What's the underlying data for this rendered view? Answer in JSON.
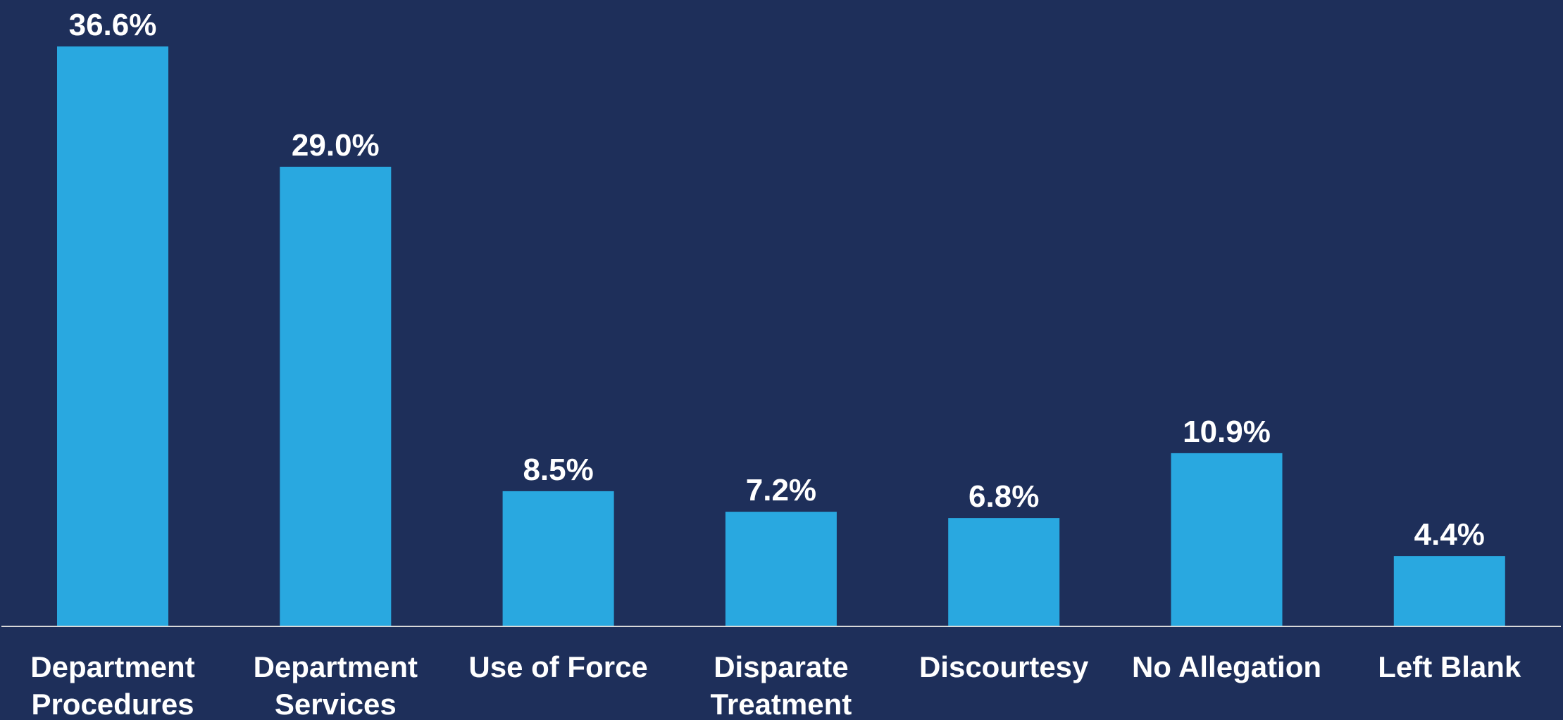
{
  "colors": {
    "background": "#1e2f5a",
    "bar": "#29a8e0",
    "axis": "#d9d9d9",
    "text": "#ffffff"
  },
  "chart_data": {
    "type": "bar",
    "title": "",
    "xlabel": "",
    "ylabel": "",
    "ylim": [
      0,
      36.6
    ],
    "grid": false,
    "legend": "none",
    "categories": [
      [
        "Department",
        "Procedures"
      ],
      [
        "Department",
        "Services"
      ],
      [
        "Use of Force"
      ],
      [
        "Disparate",
        "Treatment"
      ],
      [
        "Discourtesy"
      ],
      [
        "No Allegation"
      ],
      [
        "Left Blank"
      ]
    ],
    "values": [
      36.6,
      29.0,
      8.5,
      7.2,
      6.8,
      10.9,
      4.4
    ],
    "data_labels": [
      "36.6%",
      "29.0%",
      "8.5%",
      "7.2%",
      "6.8%",
      "10.9%",
      "4.4%"
    ]
  }
}
